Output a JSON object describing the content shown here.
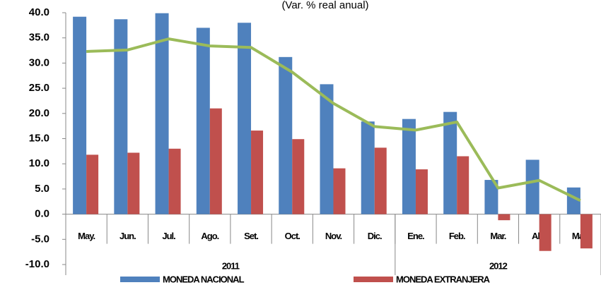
{
  "chart_data": {
    "type": "bar",
    "subtitle": "(Var. % real anual)",
    "categories": [
      "May.",
      "Jun.",
      "Jul.",
      "Ago.",
      "Set.",
      "Oct.",
      "Nov.",
      "Dic.",
      "Ene.",
      "Feb.",
      "Mar.",
      "Abr.",
      "May."
    ],
    "x_groups": [
      {
        "label": "2011",
        "count": 8
      },
      {
        "label": "2012",
        "count": 5
      }
    ],
    "series": [
      {
        "name": "MONEDA NACIONAL",
        "color": "#4f81bd",
        "values": [
          39.2,
          38.7,
          39.9,
          37.0,
          38.0,
          31.2,
          25.8,
          18.4,
          18.9,
          20.3,
          6.8,
          10.8,
          5.3
        ]
      },
      {
        "name": "MONEDA EXTRANJERA",
        "color": "#c0504d",
        "values": [
          11.8,
          12.2,
          13.0,
          21.0,
          16.6,
          14.9,
          9.1,
          13.2,
          8.9,
          11.5,
          -1.2,
          -7.3,
          -6.8
        ]
      },
      {
        "type": "line",
        "color": "#9bbb59",
        "values": [
          32.3,
          32.6,
          34.8,
          33.4,
          33.1,
          28.2,
          22.0,
          17.4,
          16.7,
          18.3,
          5.2,
          6.7,
          2.7
        ]
      }
    ],
    "ylim": [
      -10,
      40
    ],
    "yticks": [
      {
        "value": -10,
        "label": "-10.0"
      },
      {
        "value": -5,
        "label": "-5.0"
      },
      {
        "value": 0,
        "label": "0.0"
      },
      {
        "value": 5,
        "label": "5.0"
      },
      {
        "value": 10,
        "label": "10.0"
      },
      {
        "value": 15,
        "label": "15.0"
      },
      {
        "value": 20,
        "label": "20.0"
      },
      {
        "value": 25,
        "label": "25.0"
      },
      {
        "value": 30,
        "label": "30.0"
      },
      {
        "value": 35,
        "label": "35.0"
      },
      {
        "value": 40,
        "label": "40.0"
      }
    ],
    "grid": false
  }
}
